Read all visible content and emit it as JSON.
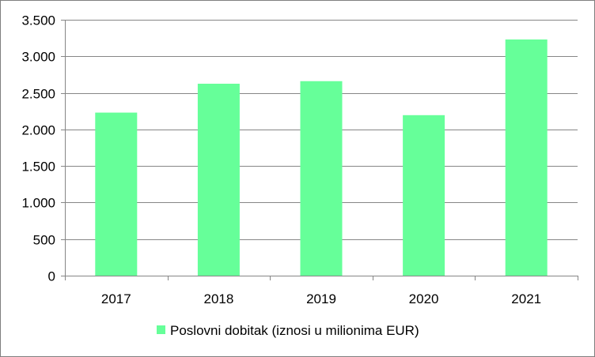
{
  "chart_data": {
    "type": "bar",
    "categories": [
      "2017",
      "2018",
      "2019",
      "2020",
      "2021"
    ],
    "series": [
      {
        "name": "Poslovni dobitak (iznosi u milionima EUR)",
        "values": [
          2230,
          2625,
          2660,
          2195,
          3230
        ],
        "color": "#66ff99"
      }
    ],
    "ylim": [
      0,
      3500
    ],
    "yticks": [
      0,
      500,
      1000,
      1500,
      2000,
      2500,
      3000,
      3500
    ],
    "ytick_labels": [
      "0",
      "500",
      "1.000",
      "1.500",
      "2.000",
      "2.500",
      "3.000",
      "3.500"
    ],
    "grid": true,
    "legend_position": "bottom",
    "gridline_color": "#868686",
    "axis_color": "#868686"
  }
}
